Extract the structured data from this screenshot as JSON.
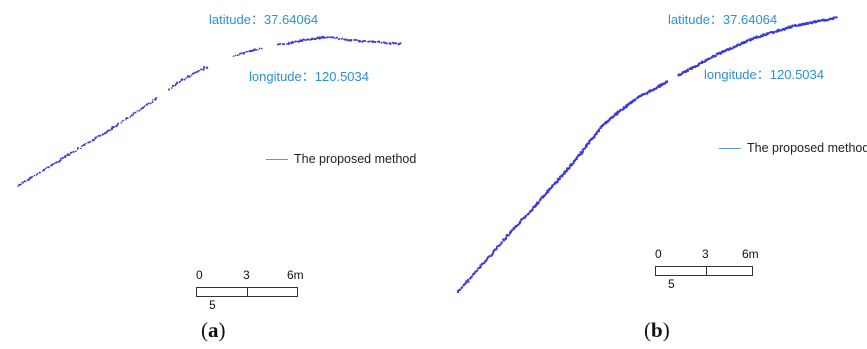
{
  "panel_a": {
    "latitude_label": "latitude：37.64064",
    "longitude_label": "longitude：120.5034",
    "legend_label": "The proposed method",
    "scale": {
      "tick_0": "0",
      "tick_1": "3",
      "tick_2": "6m",
      "sub_label": "5"
    },
    "caption_open": "(",
    "caption_letter": "a",
    "caption_close": ")",
    "track_color": "#3b3bd6"
  },
  "panel_b": {
    "latitude_label": "latitude：37.64064",
    "longitude_label": "longitude：120.5034",
    "legend_label": "The proposed method",
    "scale": {
      "tick_0": "0",
      "tick_1": "3",
      "tick_2": "6m",
      "sub_label": "5"
    },
    "caption_open": "(",
    "caption_letter": "b",
    "caption_close": ")",
    "track_color": "#3b3bd6"
  },
  "colors": {
    "coordinate_text": "#2e8fd6",
    "legend_line": "#5b9bd5"
  }
}
